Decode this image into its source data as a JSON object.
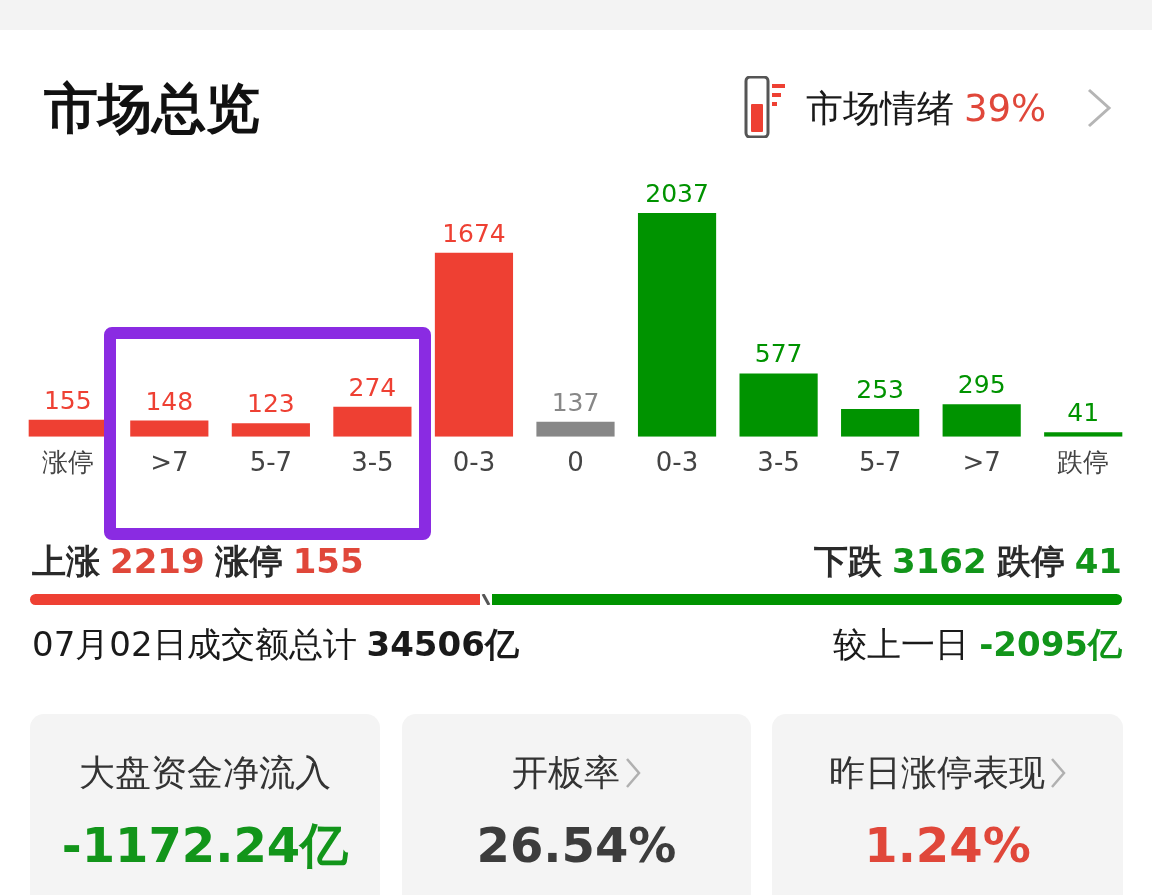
{
  "chart_data": {
    "type": "bar",
    "title": "市场总览",
    "categories": [
      "涨停",
      ">7",
      "5-7",
      "3-5",
      "0-3",
      "0",
      "0-3",
      "3-5",
      "5-7",
      ">7",
      "跌停"
    ],
    "values": [
      155,
      148,
      123,
      274,
      1674,
      137,
      2037,
      577,
      253,
      295,
      41
    ],
    "colors": [
      "#ee4033",
      "#ee4033",
      "#ee4033",
      "#ee4033",
      "#ee4033",
      "#878787",
      "#009300",
      "#009300",
      "#009300",
      "#009300",
      "#009300"
    ],
    "data_labels": true,
    "tick_labels": "x",
    "annotations": [
      "市场情绪",
      "39%",
      "上涨",
      "2219",
      "涨停",
      "155",
      "下跌",
      "3162",
      "跌停",
      "41",
      "07月02日成交额总计",
      "34506亿",
      "较上一日",
      "-2095亿",
      "大盘资金净流入",
      "-1172.24亿",
      "开板率",
      "26.54%",
      "昨日涨停表现",
      "1.24%"
    ]
  }
}
